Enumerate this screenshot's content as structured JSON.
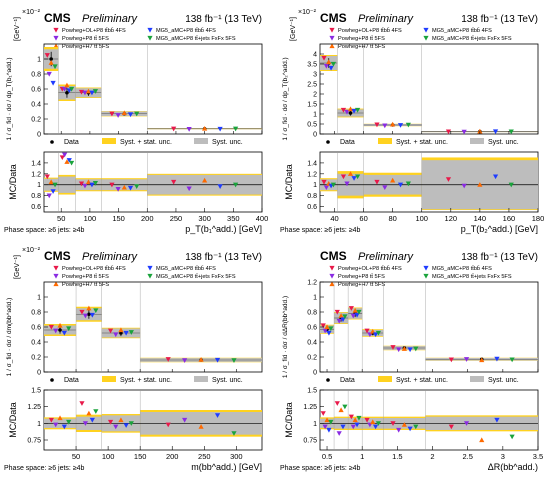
{
  "legend": {
    "powheg_ol": "Powheg+OL+P8 tt̄bb̄ 4FS",
    "powheg_p8": "Powheg+P8 tt̄ 5FS",
    "powheg_h7": "Powheg+H7 tt̄ 5FS",
    "mg5_4fs": "MG5_aMC+P8 tt̄bb̄ 4FS",
    "mg5_fxfx": "MG5_aMC+P8 tt̄+jets FxFx 5FS",
    "data": "Data",
    "syst_stat": "Syst. + stat. unc.",
    "syst": "Syst. unc."
  },
  "colors": {
    "powheg_ol": "#e8194a",
    "powheg_p8": "#8a2be2",
    "powheg_h7": "#ff6a00",
    "mg5_4fs": "#1f3cff",
    "mg5_fxfx": "#1aa33c",
    "syst_stat": "#ffd21f",
    "syst": "#bdbdbd"
  },
  "chart_data": [
    {
      "type": "bar",
      "cms": "CMS",
      "prelim": "Preliminary",
      "lumi": "138 fb⁻¹ (13 TeV)",
      "exponent": "×10⁻²",
      "ylabel": "[GeV⁻¹]",
      "ylabel_frac": "1 / σ_fid · dσ / dp_T(b₁^add.)",
      "ratio_ylabel": "MC/Data",
      "xlabel": "p_T(b₁^add.) [GeV]",
      "phase_space": "Phase space: ≥6 jets: ≥4b",
      "xlim": [
        20,
        400
      ],
      "ylim": [
        0,
        1.2
      ],
      "yticks": [
        0,
        0.2,
        0.4,
        0.6,
        0.8,
        1
      ],
      "xticks": [
        50,
        100,
        150,
        200,
        250,
        300,
        350,
        400
      ],
      "ratio_ylim": [
        0.5,
        1.6
      ],
      "ratio_yticks": [
        0.6,
        0.8,
        1,
        1.2,
        1.4
      ],
      "bins": [
        20,
        45,
        75,
        120,
        200,
        400
      ],
      "data": [
        1.0,
        0.55,
        0.55,
        0.27,
        0.07
      ],
      "unc_total": [
        0.16,
        0.11,
        0.07,
        0.035,
        0.008
      ],
      "unc_syst": [
        0.13,
        0.09,
        0.06,
        0.03,
        0.006
      ],
      "series": {
        "powheg_ol": [
          1.05,
          0.6,
          0.56,
          0.27,
          0.07
        ],
        "powheg_p8": [
          0.8,
          0.6,
          0.55,
          0.25,
          0.065
        ],
        "powheg_h7": [
          0.95,
          0.65,
          0.57,
          0.28,
          0.072
        ],
        "mg5_4fs": [
          0.68,
          0.58,
          0.55,
          0.26,
          0.068
        ],
        "mg5_fxfx": [
          0.9,
          0.6,
          0.57,
          0.27,
          0.07
        ]
      },
      "ratio_total": [
        0.13,
        0.18,
        0.12,
        0.12,
        0.2
      ],
      "ratio_syst": [
        0.11,
        0.15,
        0.1,
        0.1,
        0.18
      ],
      "ratio": {
        "powheg_ol": [
          1.15,
          1.5,
          1.02,
          1.0,
          1.05
        ],
        "powheg_p8": [
          0.8,
          1.55,
          0.98,
          0.92,
          0.93
        ],
        "powheg_h7": [
          1.05,
          1.42,
          1.05,
          0.95,
          1.08
        ],
        "mg5_4fs": [
          0.88,
          1.45,
          1.0,
          0.94,
          0.97
        ],
        "mg5_fxfx": [
          1.0,
          1.4,
          1.03,
          0.97,
          1.0
        ]
      }
    },
    {
      "type": "bar",
      "cms": "CMS",
      "prelim": "Preliminary",
      "lumi": "138 fb⁻¹ (13 TeV)",
      "exponent": "×10⁻²",
      "ylabel": "[GeV⁻¹]",
      "ylabel_frac": "1 / σ_fid · dσ / dp_T(b₂^add.)",
      "ratio_ylabel": "MC/Data",
      "xlabel": "p_T(b₂^add.) [GeV]",
      "phase_space": "Phase space: ≥6 jets: ≥4b",
      "xlim": [
        30,
        180
      ],
      "ylim": [
        0,
        4.5
      ],
      "yticks": [
        0,
        0.5,
        1,
        1.5,
        2,
        2.5,
        3,
        3.5,
        4
      ],
      "xticks": [
        40,
        60,
        80,
        100,
        120,
        140,
        160,
        180
      ],
      "ratio_ylim": [
        0.5,
        1.6
      ],
      "ratio_yticks": [
        0.6,
        0.8,
        1,
        1.2,
        1.4
      ],
      "bins": [
        30,
        42,
        60,
        100,
        180
      ],
      "data": [
        3.55,
        1.05,
        0.45,
        0.12
      ],
      "unc_total": [
        0.4,
        0.22,
        0.06,
        0.025
      ],
      "unc_syst": [
        0.35,
        0.18,
        0.05,
        0.02
      ],
      "series": {
        "powheg_ol": [
          3.8,
          1.2,
          0.47,
          0.12
        ],
        "powheg_p8": [
          3.4,
          1.1,
          0.42,
          0.11
        ],
        "powheg_h7": [
          3.6,
          1.25,
          0.48,
          0.13
        ],
        "mg5_4fs": [
          3.3,
          1.15,
          0.44,
          0.125
        ],
        "mg5_fxfx": [
          3.5,
          1.2,
          0.46,
          0.12
        ]
      },
      "ratio_total": [
        0.12,
        0.25,
        0.22,
        0.5
      ],
      "ratio_syst": [
        0.1,
        0.2,
        0.18,
        0.45
      ],
      "ratio": {
        "powheg_ol": [
          1.05,
          1.15,
          1.05,
          1.1
        ],
        "powheg_p8": [
          0.95,
          1.02,
          0.95,
          0.98
        ],
        "powheg_h7": [
          1.02,
          1.2,
          1.08,
          1.0
        ],
        "mg5_4fs": [
          0.98,
          1.12,
          1.0,
          1.15
        ],
        "mg5_fxfx": [
          1.0,
          1.15,
          1.02,
          1.0
        ]
      }
    },
    {
      "type": "bar",
      "cms": "CMS",
      "prelim": "Preliminary",
      "lumi": "138 fb⁻¹ (13 TeV)",
      "exponent": "×10⁻²",
      "ylabel": "[GeV⁻¹]",
      "ylabel_frac": "1 / σ_fid · dσ / dm(bb^add.)",
      "ratio_ylabel": "MC/Data",
      "xlabel": "m(bb^add.) [GeV]",
      "phase_space": "Phase space: ≥6 jets: ≥4b",
      "xlim": [
        0,
        340
      ],
      "ylim": [
        0,
        1.2
      ],
      "yticks": [
        0,
        0.2,
        0.4,
        0.6,
        0.8,
        1
      ],
      "xticks": [
        50,
        100,
        150,
        200,
        250,
        300
      ],
      "ratio_ylim": [
        0.6,
        1.5
      ],
      "ratio_yticks": [
        0.75,
        1,
        1.25,
        1.5
      ],
      "bins": [
        0,
        50,
        90,
        150,
        340
      ],
      "data": [
        0.56,
        0.77,
        0.52,
        0.16
      ],
      "unc_total": [
        0.08,
        0.1,
        0.07,
        0.03
      ],
      "unc_syst": [
        0.06,
        0.08,
        0.06,
        0.025
      ],
      "series": {
        "powheg_ol": [
          0.6,
          0.8,
          0.55,
          0.17
        ],
        "powheg_p8": [
          0.55,
          0.75,
          0.5,
          0.155
        ],
        "powheg_h7": [
          0.62,
          0.85,
          0.56,
          0.165
        ],
        "mg5_4fs": [
          0.52,
          0.76,
          0.52,
          0.16
        ],
        "mg5_fxfx": [
          0.58,
          0.82,
          0.53,
          0.155
        ]
      },
      "ratio_total": [
        0.09,
        0.13,
        0.14,
        0.2
      ],
      "ratio_syst": [
        0.07,
        0.1,
        0.12,
        0.17
      ],
      "ratio": {
        "powheg_ol": [
          1.05,
          1.3,
          1.02,
          0.98
        ],
        "powheg_p8": [
          0.98,
          1.0,
          0.95,
          1.05
        ],
        "powheg_h7": [
          1.08,
          1.15,
          1.05,
          0.95
        ],
        "mg5_4fs": [
          0.95,
          1.05,
          0.97,
          1.12
        ],
        "mg5_fxfx": [
          1.02,
          1.18,
          1.0,
          0.85
        ]
      }
    },
    {
      "type": "bar",
      "cms": "CMS",
      "prelim": "Preliminary",
      "lumi": "138 fb⁻¹ (13 TeV)",
      "exponent": "",
      "ylabel": "",
      "ylabel_frac": "1 / σ_fid · dσ / dΔR(bb^add.)",
      "ratio_ylabel": "MC/Data",
      "xlabel": "ΔR(bb^add.)",
      "phase_space": "Phase space: ≥6 jets: ≥4b",
      "xlim": [
        0.4,
        3.5
      ],
      "ylim": [
        0,
        1.2
      ],
      "yticks": [
        0,
        0.2,
        0.4,
        0.6,
        0.8,
        1,
        1.2
      ],
      "xticks": [
        0.5,
        1,
        1.5,
        2,
        2.5,
        3,
        3.5
      ],
      "ratio_ylim": [
        0.6,
        1.5
      ],
      "ratio_yticks": [
        0.75,
        1,
        1.25,
        1.5
      ],
      "bins": [
        0.4,
        0.6,
        0.8,
        1.0,
        1.3,
        1.9,
        3.5
      ],
      "data": [
        0.57,
        0.72,
        0.78,
        0.52,
        0.32,
        0.17
      ],
      "unc_total": [
        0.06,
        0.08,
        0.08,
        0.05,
        0.03,
        0.02
      ],
      "unc_syst": [
        0.05,
        0.07,
        0.07,
        0.04,
        0.025,
        0.017
      ],
      "series": {
        "powheg_ol": [
          0.62,
          0.8,
          0.85,
          0.55,
          0.33,
          0.165
        ],
        "powheg_p8": [
          0.55,
          0.68,
          0.75,
          0.5,
          0.3,
          0.17
        ],
        "powheg_h7": [
          0.6,
          0.75,
          0.82,
          0.54,
          0.31,
          0.16
        ],
        "mg5_4fs": [
          0.52,
          0.7,
          0.76,
          0.5,
          0.3,
          0.175
        ],
        "mg5_fxfx": [
          0.58,
          0.74,
          0.8,
          0.52,
          0.31,
          0.165
        ]
      },
      "ratio_total": [
        0.09,
        0.1,
        0.1,
        0.1,
        0.1,
        0.12
      ],
      "ratio_syst": [
        0.07,
        0.08,
        0.08,
        0.08,
        0.08,
        0.1
      ],
      "ratio": {
        "powheg_ol": [
          1.15,
          1.3,
          1.1,
          1.05,
          1.0,
          0.95
        ],
        "powheg_p8": [
          0.95,
          0.85,
          0.95,
          0.98,
          0.9,
          1.0
        ],
        "powheg_h7": [
          1.05,
          1.2,
          1.05,
          1.02,
          0.98,
          0.75
        ],
        "mg5_4fs": [
          0.9,
          0.95,
          0.98,
          0.95,
          0.92,
          1.05
        ],
        "mg5_fxfx": [
          1.02,
          1.25,
          1.08,
          1.0,
          0.95,
          0.8
        ]
      }
    }
  ]
}
